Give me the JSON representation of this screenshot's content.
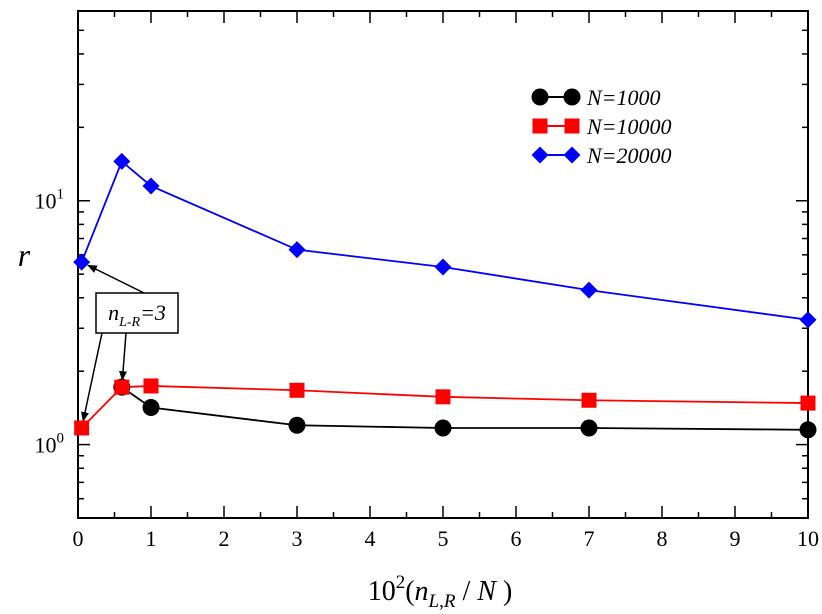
{
  "chart_data": {
    "type": "line",
    "title": "",
    "xlabel": {
      "base": "10",
      "exponent": "2",
      "open": "(",
      "var": "n",
      "sub": "L,R",
      "slash": "/",
      "den": "N",
      "close": " )"
    },
    "ylabel": "r",
    "xlim": [
      0,
      10
    ],
    "ylim": [
      0.5,
      60
    ],
    "yscale": "log",
    "x_ticks": [
      "0",
      "1",
      "2",
      "3",
      "4",
      "5",
      "6",
      "7",
      "8",
      "9",
      "10"
    ],
    "y_ticks": [
      {
        "base": "10",
        "exp": "1",
        "value": 10
      },
      {
        "base": "10",
        "exp": "0",
        "value": 1
      }
    ],
    "grid": false,
    "legend_position": "top-right",
    "series": [
      {
        "name": "N=1000",
        "color": "#000000",
        "marker": "circle",
        "x": [
          0.6,
          1,
          3,
          5,
          7,
          10
        ],
        "y": [
          1.72,
          1.42,
          1.2,
          1.17,
          1.17,
          1.15
        ]
      },
      {
        "name": "N=10000",
        "color": "#ff0000",
        "marker": "square",
        "x": [
          0.05,
          0.6,
          1,
          3,
          5,
          7,
          10
        ],
        "y": [
          1.17,
          1.72,
          1.74,
          1.67,
          1.57,
          1.52,
          1.48
        ]
      },
      {
        "name": "N=20000",
        "color": "#0000ff",
        "marker": "diamond",
        "x": [
          0.05,
          0.6,
          1,
          3,
          5,
          7,
          10
        ],
        "y": [
          5.6,
          14.5,
          11.5,
          6.3,
          5.35,
          4.3,
          3.25
        ]
      }
    ],
    "annotations": [
      {
        "text_var": "n",
        "text_sub": "L-R",
        "text_rest": "=3",
        "arrow_targets": [
          {
            "x": 0.05,
            "y": 5.6
          },
          {
            "x": 0.05,
            "y": 1.17
          },
          {
            "x": 0.6,
            "y": 1.72
          }
        ]
      }
    ]
  }
}
